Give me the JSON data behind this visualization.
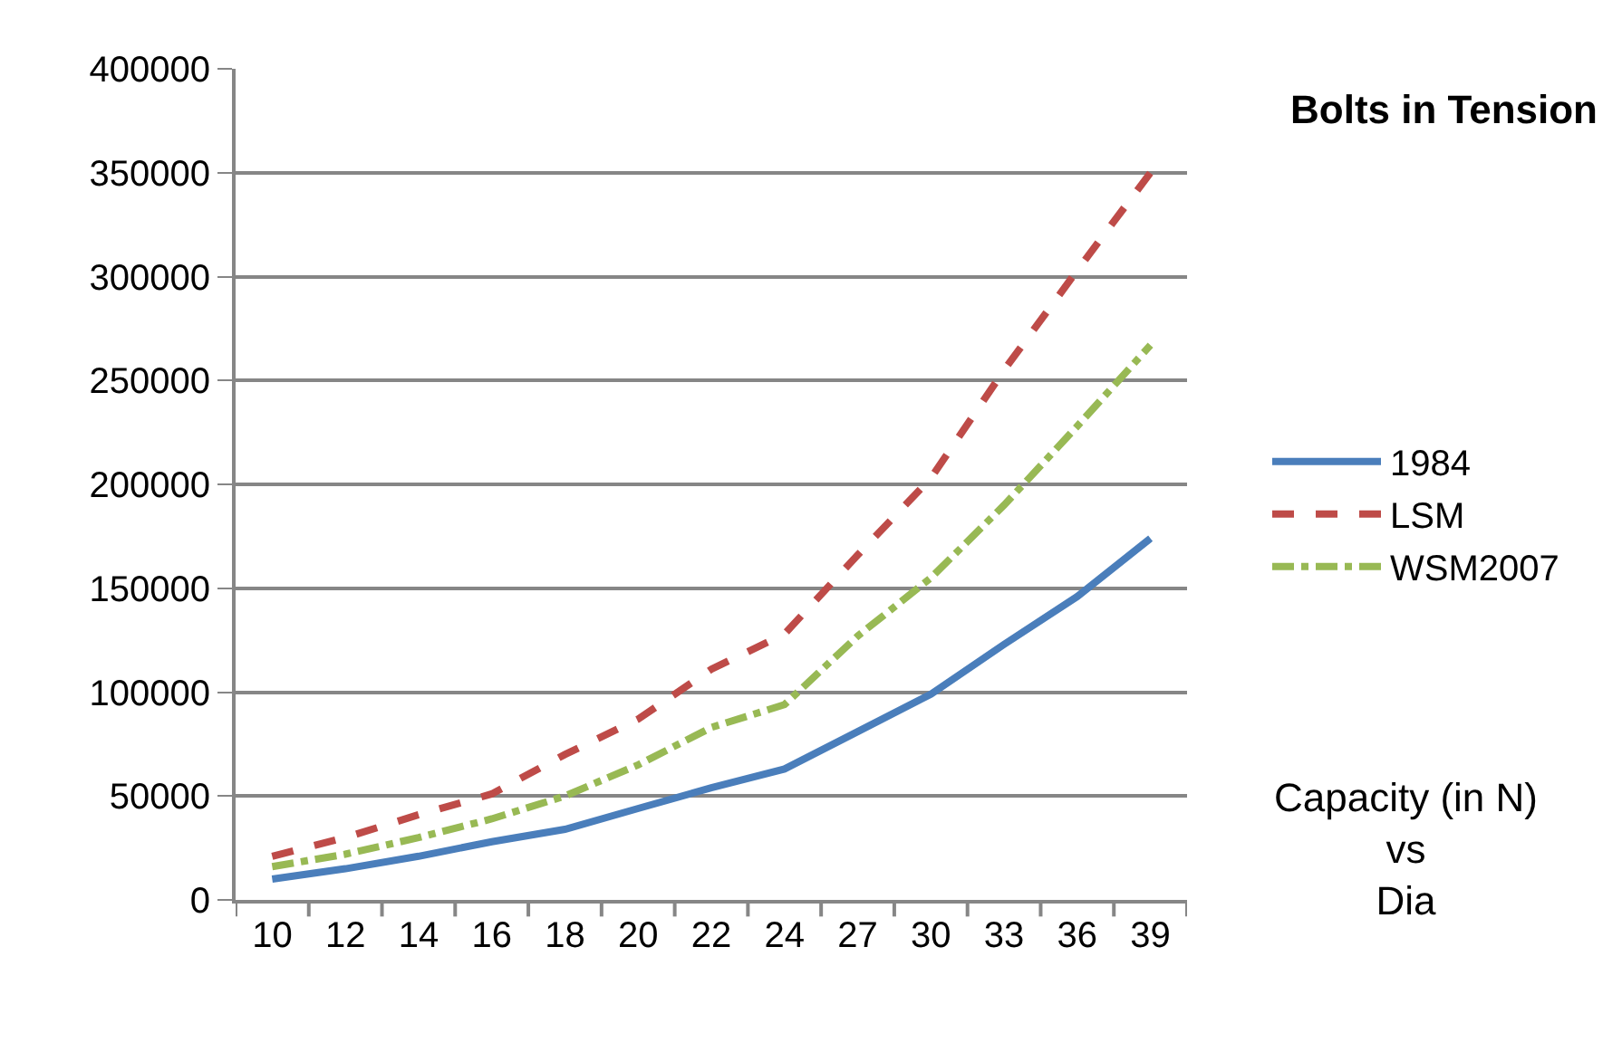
{
  "chart_data": {
    "type": "line",
    "title": "Bolts in Tension",
    "annotations": [
      "Capacity (in N)\nvs\nDia"
    ],
    "categories": [
      "10",
      "12",
      "14",
      "16",
      "18",
      "20",
      "22",
      "24",
      "27",
      "30",
      "33",
      "36",
      "39"
    ],
    "series": [
      {
        "name": "1984",
        "color": "#4a7ebb",
        "line_style": "solid",
        "values": [
          10000,
          15000,
          21000,
          28000,
          34000,
          44000,
          54000,
          63000,
          81000,
          99000,
          123000,
          146000,
          174000
        ]
      },
      {
        "name": "LSM",
        "color": "#be4b48",
        "line_style": "dashed",
        "values": [
          21000,
          30000,
          41000,
          51000,
          70000,
          87000,
          111000,
          128000,
          166000,
          203000,
          255000,
          303000,
          350000
        ]
      },
      {
        "name": "WSM2007",
        "color": "#98b954",
        "line_style": "dashdot",
        "values": [
          16000,
          22000,
          30000,
          39000,
          50000,
          65000,
          83000,
          94000,
          127000,
          155000,
          190000,
          228000,
          267000
        ]
      }
    ],
    "ylim": [
      0,
      400000
    ],
    "yticks": [
      0,
      50000,
      100000,
      150000,
      200000,
      250000,
      300000,
      350000,
      400000
    ],
    "grid": "y",
    "legend": "right",
    "marker": "none"
  }
}
